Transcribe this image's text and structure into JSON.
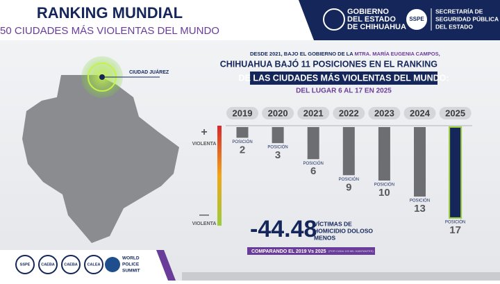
{
  "header": {
    "title": "RANKING MUNDIAL",
    "subtitle": "50 CIUDADES MÁS VIOLENTAS DEL MUNDO"
  },
  "logos": {
    "government": [
      "GOBIERNO",
      "DEL ESTADO",
      "DE CHIHUAHUA"
    ],
    "sspe": "SSPE",
    "secretariat": [
      "SECRETARÍA DE",
      "SEGURIDAD PÚBLICA",
      "DEL ESTADO"
    ]
  },
  "map": {
    "city": "CIUDAD JUÁREZ"
  },
  "headline": {
    "intro": "DESDE 2021, BAJO EL GOBIERNO DE LA",
    "name": "MTRA. MARÍA EUGENIA CAMPOS,",
    "line1": "CHIHUAHUA BAJÓ 11 POSICIONES EN EL RANKING",
    "line2": "DE LAS CIUDADES MÁS VIOLENTAS DEL MUNDO:",
    "line3": "DEL LUGAR 6 AL 17 EN 2025"
  },
  "scale": {
    "plus": "+",
    "top": "VIOLENTA",
    "minus": "—",
    "bottom": "VIOLENTA"
  },
  "chart_data": {
    "type": "bar",
    "categories": [
      "2019",
      "2020",
      "2021",
      "2022",
      "2023",
      "2024",
      "2025"
    ],
    "values": [
      2,
      3,
      6,
      9,
      10,
      13,
      17
    ],
    "value_prefix": "POSICIÓN",
    "color": "#6d6e71",
    "highlight_color": "#14265a"
  },
  "stat": {
    "value": "-44.48",
    "label": [
      "VÍCTIMAS DE",
      "HOMICIDIO DOLOSO",
      "MENOS"
    ],
    "compare": "COMPARANDO EL 2019 Vs 2025",
    "note": "(POR CADA 100 MIL HABITANTES)"
  },
  "footer": {
    "badges": [
      "SSPE",
      "CAEBA",
      "CAEBA",
      "CALEA"
    ],
    "summit": [
      "WORLD",
      "POLICE",
      "SUMMIT"
    ]
  }
}
